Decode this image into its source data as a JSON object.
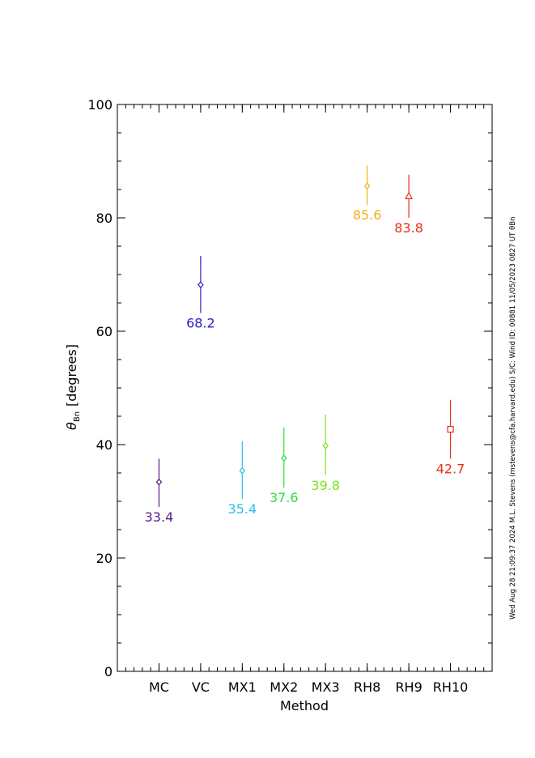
{
  "chart_data": {
    "type": "scatter",
    "xlabel": "Method",
    "ylabel_symbol": "θ",
    "ylabel_subscript": "Bn",
    "ylabel_units": "[degrees]",
    "ylim": [
      0,
      100
    ],
    "yticks": [
      0,
      20,
      40,
      60,
      80,
      100
    ],
    "categories": [
      "MC",
      "VC",
      "MX1",
      "MX2",
      "MX3",
      "RH8",
      "RH9",
      "RH10"
    ],
    "points": [
      {
        "category": "MC",
        "value": 33.4,
        "err_low": 29.0,
        "err_high": 37.5,
        "label": "33.4",
        "color": "#5a1a8c",
        "marker": "diamond"
      },
      {
        "category": "VC",
        "value": 68.2,
        "err_low": 63.2,
        "err_high": 73.3,
        "label": "68.2",
        "color": "#2a22c8",
        "marker": "diamond"
      },
      {
        "category": "MX1",
        "value": 35.4,
        "err_low": 30.4,
        "err_high": 40.6,
        "label": "35.4",
        "color": "#28c0e8",
        "marker": "diamond"
      },
      {
        "category": "MX2",
        "value": 37.6,
        "err_low": 32.4,
        "err_high": 43.0,
        "label": "37.6",
        "color": "#2ae03a",
        "marker": "diamond"
      },
      {
        "category": "MX3",
        "value": 39.8,
        "err_low": 34.6,
        "err_high": 45.3,
        "label": "39.8",
        "color": "#80e020",
        "marker": "diamond"
      },
      {
        "category": "RH8",
        "value": 85.6,
        "err_low": 82.3,
        "err_high": 89.2,
        "label": "85.6",
        "color": "#f2b010",
        "marker": "diamond"
      },
      {
        "category": "RH9",
        "value": 83.8,
        "err_low": 80.0,
        "err_high": 87.6,
        "label": "83.8",
        "color": "#e83018",
        "marker": "triangle"
      },
      {
        "category": "RH10",
        "value": 42.7,
        "err_low": 37.5,
        "err_high": 47.9,
        "label": "42.7",
        "color": "#e83018",
        "marker": "square"
      }
    ]
  },
  "footer": "Wed Aug 28 21:09:37 2024  M.L. Stevens (mstevens@cfa.harvard.edu)  S/C: Wind ID: 00881 11/05/2023  0827 UT θBn"
}
